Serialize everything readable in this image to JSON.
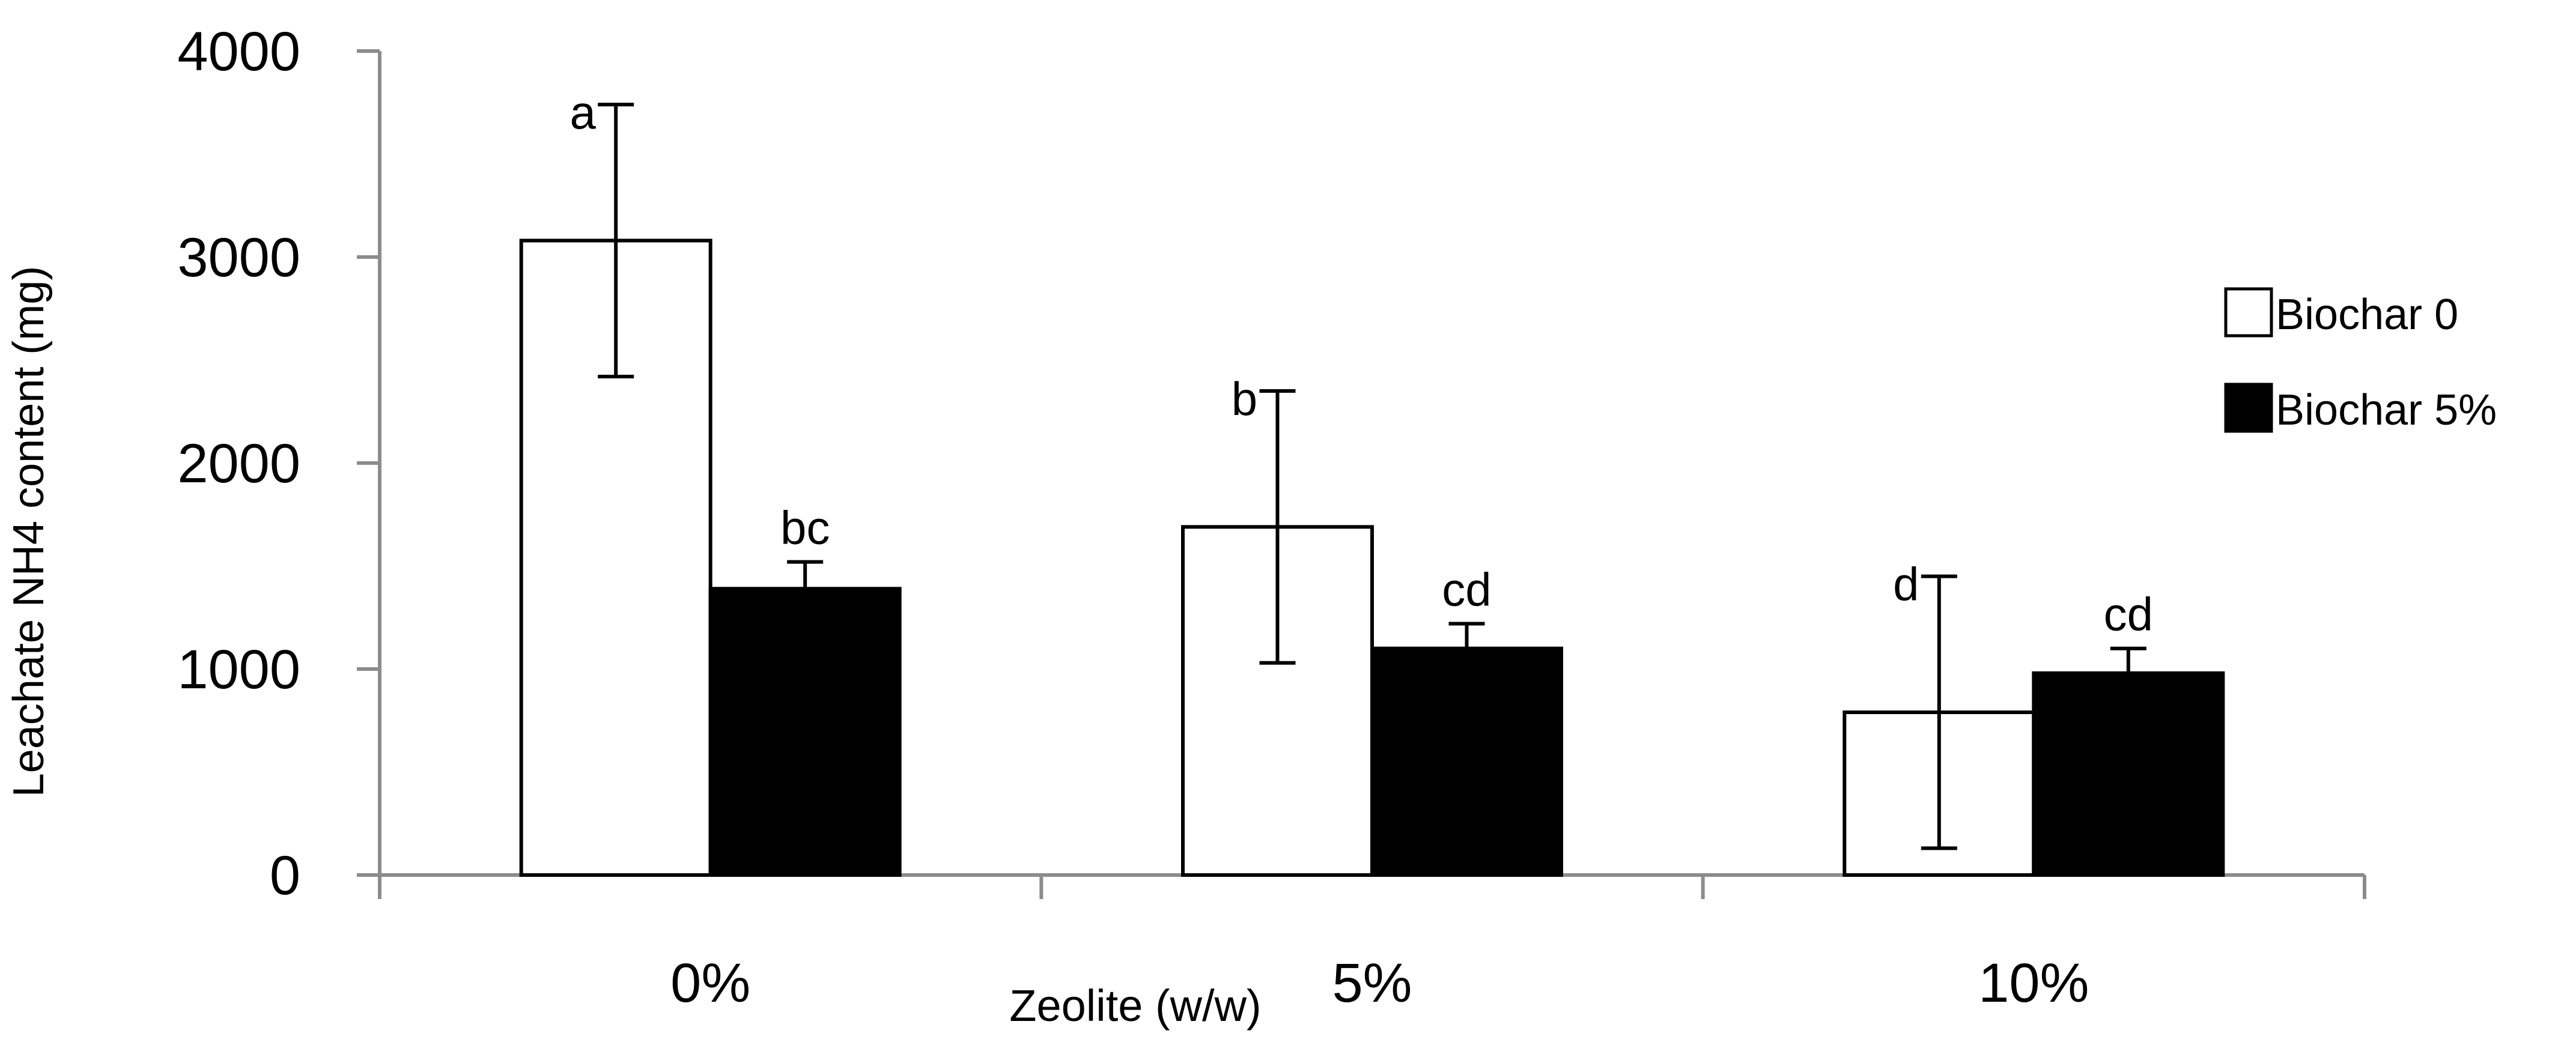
{
  "chart_data": {
    "type": "bar",
    "xlabel": "Zeolite (w/w)",
    "ylabel": "Leachate NH4 content (mg)",
    "categories": [
      "0%",
      "5%",
      "10%"
    ],
    "ylim": [
      0,
      4000
    ],
    "yticks": [
      0,
      1000,
      2000,
      3000,
      4000
    ],
    "series": [
      {
        "name": "Biochar 0",
        "color": "#ffffff",
        "values": [
          3080,
          1690,
          790
        ],
        "error_low": [
          2420,
          1030,
          130
        ],
        "error_high": [
          3740,
          2350,
          1450
        ],
        "letters": [
          "a",
          "b",
          "d"
        ]
      },
      {
        "name": "Biochar 5%",
        "color": "#000000",
        "values": [
          1390,
          1100,
          980
        ],
        "error_low": [
          1260,
          980,
          860
        ],
        "error_high": [
          1520,
          1220,
          1100
        ],
        "letters": [
          "bc",
          "cd",
          "cd"
        ]
      }
    ],
    "legend_position": "right",
    "grid": false
  },
  "legend": {
    "items": [
      {
        "label": "Biochar 0",
        "swatch": "#ffffff"
      },
      {
        "label": "Biochar 5%",
        "swatch": "#000000"
      }
    ]
  }
}
